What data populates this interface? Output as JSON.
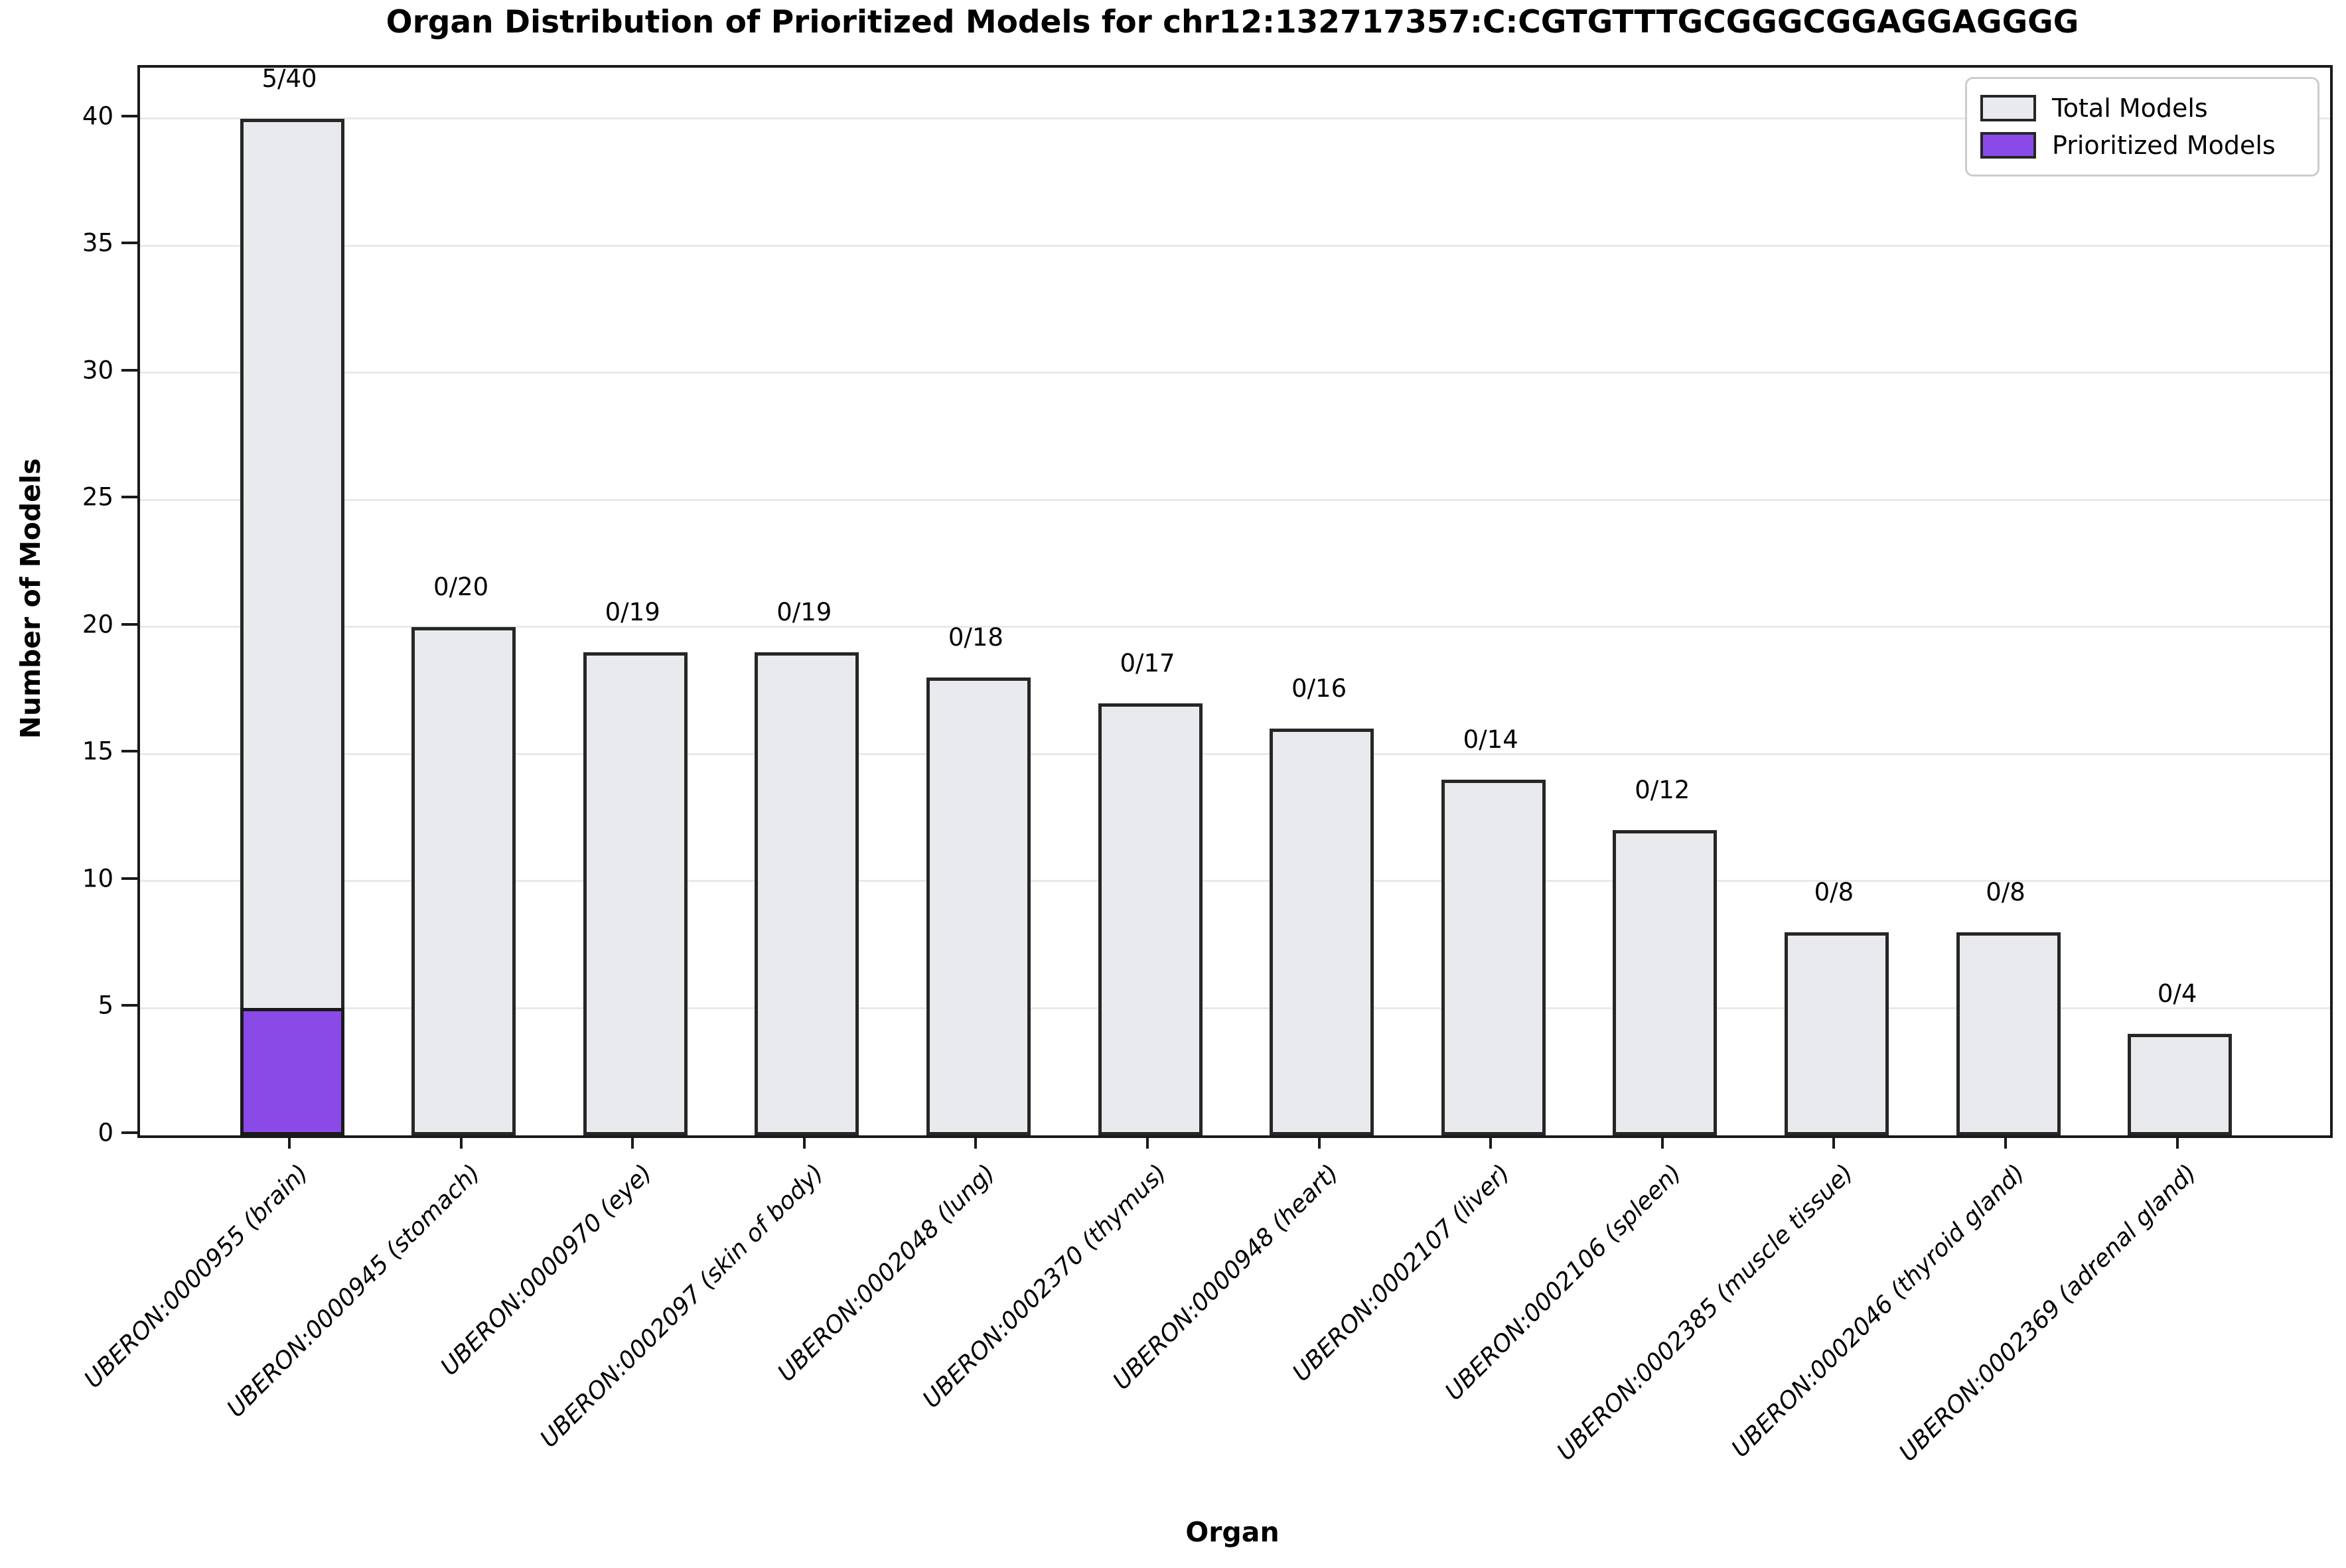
{
  "chart_data": {
    "type": "bar",
    "title": "Organ Distribution of Prioritized Models for chr12:132717357:C:CGTGTTTGCGGGCGGAGGAGGGG",
    "xlabel": "Organ",
    "ylabel": "Number of Models",
    "ylim": [
      0,
      42
    ],
    "yticks": [
      0,
      5,
      10,
      15,
      20,
      25,
      30,
      35,
      40
    ],
    "grid": "horizontal",
    "categories": [
      "UBERON:0000955 (brain)",
      "UBERON:0000945 (stomach)",
      "UBERON:0000970 (eye)",
      "UBERON:0002097 (skin of body)",
      "UBERON:0002048 (lung)",
      "UBERON:0002370 (thymus)",
      "UBERON:0000948 (heart)",
      "UBERON:0002107 (liver)",
      "UBERON:0002106 (spleen)",
      "UBERON:0002385 (muscle tissue)",
      "UBERON:0002046 (thyroid gland)",
      "UBERON:0002369 (adrenal gland)"
    ],
    "series": [
      {
        "name": "Total Models",
        "color": "#e8eaee",
        "values": [
          40,
          20,
          19,
          19,
          18,
          17,
          16,
          14,
          12,
          8,
          8,
          4
        ]
      },
      {
        "name": "Prioritized Models",
        "color": "#8a4ae8",
        "values": [
          5,
          0,
          0,
          0,
          0,
          0,
          0,
          0,
          0,
          0,
          0,
          0
        ]
      }
    ],
    "bar_labels": [
      "5/40",
      "0/20",
      "0/19",
      "0/19",
      "0/18",
      "0/17",
      "0/16",
      "0/14",
      "0/12",
      "0/8",
      "0/8",
      "0/4"
    ],
    "legend": {
      "position": "upper right",
      "entries": [
        {
          "label": "Total Models",
          "color": "#e8eaee"
        },
        {
          "label": "Prioritized Models",
          "color": "#8a4ae8"
        }
      ]
    },
    "colors": {
      "bar_edge": "#262626",
      "spine": "#1a1a1a",
      "gridline": "#e9e9e9"
    }
  }
}
